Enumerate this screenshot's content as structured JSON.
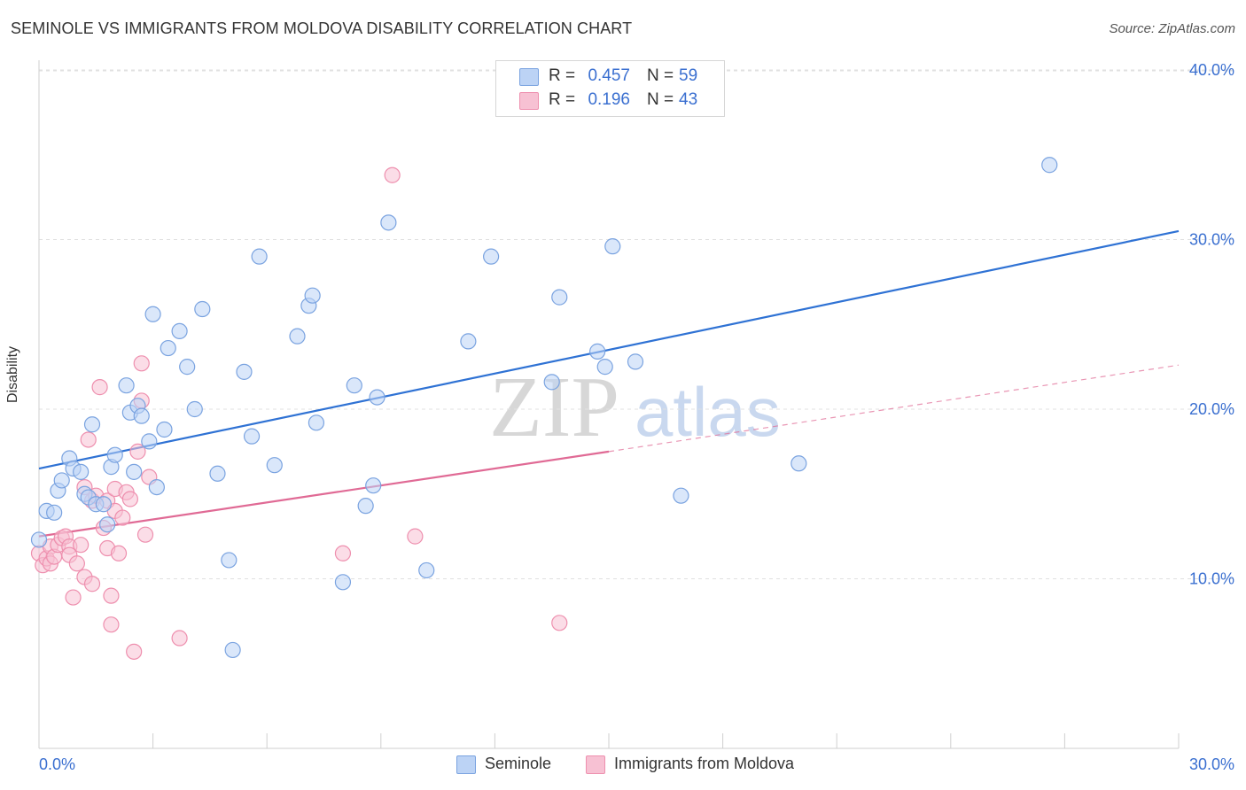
{
  "title": "SEMINOLE VS IMMIGRANTS FROM MOLDOVA DISABILITY CORRELATION CHART",
  "source": "Source: ZipAtlas.com",
  "watermark": {
    "zip": "ZIP",
    "atlas": "atlas"
  },
  "legend_top": [
    {
      "r_label": "R =",
      "r_value": "0.457",
      "n_label": "N =",
      "n_value": "59"
    },
    {
      "r_label": "R =",
      "r_value": "0.196",
      "n_label": "N =",
      "n_value": "43"
    }
  ],
  "legend_bottom": [
    "Seminole",
    "Immigrants from Moldova"
  ],
  "colors": {
    "blue_fill": "#bcd3f5",
    "blue_stroke": "#7aa3e0",
    "blue_line": "#2f72d4",
    "pink_fill": "#f7c1d3",
    "pink_stroke": "#ee8fae",
    "pink_line": "#e06a95",
    "tick_label": "#3a6fd0",
    "grid": "#e0e0e0"
  },
  "chart_data": {
    "type": "scatter",
    "title": "SEMINOLE VS IMMIGRANTS FROM MOLDOVA DISABILITY CORRELATION CHART",
    "xlabel": "",
    "ylabel": "Disability",
    "xlim": [
      0,
      30
    ],
    "ylim": [
      0,
      41
    ],
    "x_tick_labels": [
      "0.0%",
      "30.0%"
    ],
    "y_ticks": [
      10,
      20,
      30,
      40
    ],
    "y_tick_labels": [
      "10.0%",
      "20.0%",
      "30.0%",
      "40.0%"
    ],
    "grid": true,
    "legend_position": "top-center",
    "series": [
      {
        "name": "Seminole",
        "r": 0.457,
        "n": 59,
        "trend": {
          "x0": 0,
          "y0": 16.5,
          "x1": 30,
          "y1": 30.5,
          "extends_to": 30
        },
        "points": [
          [
            0,
            12.3
          ],
          [
            0.2,
            14
          ],
          [
            0.4,
            13.9
          ],
          [
            0.5,
            15.2
          ],
          [
            0.6,
            15.8
          ],
          [
            0.8,
            17.1
          ],
          [
            0.9,
            16.5
          ],
          [
            1.1,
            16.3
          ],
          [
            1.2,
            15
          ],
          [
            1.3,
            14.8
          ],
          [
            1.4,
            19.1
          ],
          [
            1.5,
            14.4
          ],
          [
            1.7,
            14.4
          ],
          [
            1.8,
            13.2
          ],
          [
            1.9,
            16.6
          ],
          [
            2.0,
            17.3
          ],
          [
            2.3,
            21.4
          ],
          [
            2.4,
            19.8
          ],
          [
            2.5,
            16.3
          ],
          [
            2.6,
            20.2
          ],
          [
            2.7,
            19.6
          ],
          [
            2.9,
            18.1
          ],
          [
            3.0,
            25.6
          ],
          [
            3.1,
            15.4
          ],
          [
            3.3,
            18.8
          ],
          [
            3.4,
            23.6
          ],
          [
            3.7,
            24.6
          ],
          [
            3.9,
            22.5
          ],
          [
            4.1,
            20
          ],
          [
            4.3,
            25.9
          ],
          [
            4.7,
            16.2
          ],
          [
            5.0,
            11.1
          ],
          [
            5.1,
            5.8
          ],
          [
            5.4,
            22.2
          ],
          [
            5.6,
            18.4
          ],
          [
            5.8,
            29
          ],
          [
            6.2,
            16.7
          ],
          [
            6.8,
            24.3
          ],
          [
            7.1,
            26.1
          ],
          [
            7.2,
            26.7
          ],
          [
            7.3,
            19.2
          ],
          [
            8.0,
            9.8
          ],
          [
            8.3,
            21.4
          ],
          [
            8.6,
            14.3
          ],
          [
            8.8,
            15.5
          ],
          [
            8.9,
            20.7
          ],
          [
            9.2,
            31
          ],
          [
            10.2,
            10.5
          ],
          [
            11.3,
            24
          ],
          [
            11.9,
            29
          ],
          [
            13.5,
            21.6
          ],
          [
            13.7,
            26.6
          ],
          [
            14.7,
            23.4
          ],
          [
            14.9,
            22.5
          ],
          [
            15.1,
            29.6
          ],
          [
            15.7,
            22.8
          ],
          [
            16.9,
            14.9
          ],
          [
            20.0,
            16.8
          ],
          [
            26.6,
            34.4
          ]
        ]
      },
      {
        "name": "Immigrants from Moldova",
        "r": 0.196,
        "n": 43,
        "trend": {
          "x0": 0,
          "y0": 12.5,
          "x1": 15,
          "y1": 17.5,
          "dashed_to": [
            30,
            22.6
          ]
        },
        "points": [
          [
            0,
            11.5
          ],
          [
            0.1,
            10.8
          ],
          [
            0.2,
            11.2
          ],
          [
            0.3,
            10.9
          ],
          [
            0.3,
            11.9
          ],
          [
            0.4,
            11.3
          ],
          [
            0.5,
            12
          ],
          [
            0.6,
            12.4
          ],
          [
            0.7,
            12.5
          ],
          [
            0.8,
            11.9
          ],
          [
            0.8,
            11.4
          ],
          [
            0.9,
            8.9
          ],
          [
            1.0,
            10.9
          ],
          [
            1.1,
            12
          ],
          [
            1.2,
            10.1
          ],
          [
            1.2,
            15.4
          ],
          [
            1.3,
            18.2
          ],
          [
            1.4,
            14.6
          ],
          [
            1.4,
            9.7
          ],
          [
            1.5,
            14.9
          ],
          [
            1.6,
            21.3
          ],
          [
            1.7,
            13
          ],
          [
            1.8,
            14.6
          ],
          [
            1.8,
            11.8
          ],
          [
            1.9,
            7.3
          ],
          [
            1.9,
            9
          ],
          [
            2.0,
            14
          ],
          [
            2.0,
            15.3
          ],
          [
            2.1,
            11.5
          ],
          [
            2.2,
            13.6
          ],
          [
            2.3,
            15.1
          ],
          [
            2.4,
            14.7
          ],
          [
            2.5,
            5.7
          ],
          [
            2.6,
            17.5
          ],
          [
            2.7,
            22.7
          ],
          [
            2.7,
            20.5
          ],
          [
            2.8,
            12.6
          ],
          [
            2.9,
            16
          ],
          [
            3.7,
            6.5
          ],
          [
            8.0,
            11.5
          ],
          [
            9.3,
            33.8
          ],
          [
            9.9,
            12.5
          ],
          [
            13.7,
            7.4
          ]
        ]
      }
    ]
  }
}
